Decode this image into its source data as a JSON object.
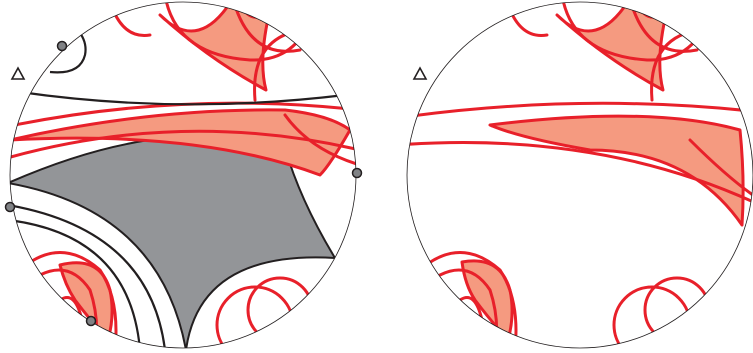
{
  "panels": [
    {
      "id": "left",
      "boundary_points": 4,
      "marker": "triangle",
      "shaded_region": true
    },
    {
      "id": "right",
      "boundary_points": 0,
      "marker": "triangle",
      "shaded_region": false
    }
  ],
  "colors": {
    "curve": "#e8202a",
    "fill_light": "#f59a80",
    "fill_gray": "#939598",
    "outline": "#231f20"
  }
}
